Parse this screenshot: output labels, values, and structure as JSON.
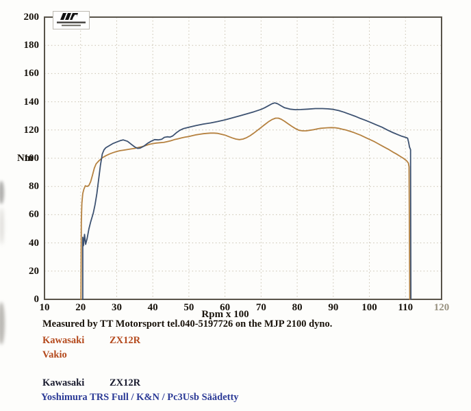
{
  "page": {
    "background": "#fdfdfb"
  },
  "logo": {
    "icon": "mjp-motorsport-logo"
  },
  "footer": {
    "measured_line": "Measured by TT Motorsport tel.040-5197726 on the MJP 2100 dyno.",
    "runs": [
      {
        "make": "Kawasaki",
        "model": "ZX12R",
        "spec": "Vakio",
        "color": "#b4491c"
      },
      {
        "make": "Kawasaki",
        "model": "ZX12R",
        "spec": "Yoshimura TRS Full / K&N / Pc3Usb Säädetty",
        "title_color": "#181a2d",
        "color": "#2b3a96"
      }
    ]
  },
  "chart_data": {
    "type": "line",
    "title": "",
    "xlabel": "Rpm x 100",
    "ylabel": "Nm",
    "xlim": [
      10,
      120
    ],
    "ylim": [
      0,
      200
    ],
    "x_ticks": [
      10,
      20,
      30,
      40,
      50,
      60,
      70,
      80,
      90,
      100,
      110,
      120
    ],
    "y_ticks": [
      0,
      20,
      40,
      60,
      80,
      100,
      120,
      140,
      160,
      180,
      200
    ],
    "x_tick_muted": 120,
    "grid": "dotted",
    "grid_color": "#c8c0ae",
    "frame_color": "#585349",
    "legend_position": "none",
    "series": [
      {
        "id": "vakio",
        "name": "Kawasaki ZX12R Vakio",
        "color": "#b5813f",
        "points": [
          [
            20.1,
            0
          ],
          [
            20.2,
            55
          ],
          [
            20.35,
            68
          ],
          [
            20.6,
            75
          ],
          [
            20.9,
            78
          ],
          [
            21.3,
            80.5
          ],
          [
            21.8,
            80
          ],
          [
            22.3,
            80.8
          ],
          [
            22.8,
            83.5
          ],
          [
            23.3,
            88
          ],
          [
            23.8,
            93
          ],
          [
            24.3,
            96
          ],
          [
            25,
            98
          ],
          [
            26,
            100.3
          ],
          [
            27,
            101.8
          ],
          [
            28,
            103
          ],
          [
            29,
            104
          ],
          [
            30,
            104.8
          ],
          [
            31,
            105.4
          ],
          [
            32,
            105.8
          ],
          [
            33,
            106.2
          ],
          [
            34,
            106.6
          ],
          [
            35,
            107
          ],
          [
            36,
            107.6
          ],
          [
            37,
            108.2
          ],
          [
            38,
            109
          ],
          [
            39,
            109.8
          ],
          [
            40,
            110.4
          ],
          [
            41,
            110.8
          ],
          [
            42,
            111
          ],
          [
            43,
            111.2
          ],
          [
            44,
            111.8
          ],
          [
            45,
            112.4
          ],
          [
            46,
            113.2
          ],
          [
            47,
            113.8
          ],
          [
            48,
            114.4
          ],
          [
            49,
            115
          ],
          [
            50,
            115.4
          ],
          [
            51,
            116
          ],
          [
            52,
            116.6
          ],
          [
            53,
            117
          ],
          [
            54,
            117.4
          ],
          [
            55,
            117.6
          ],
          [
            56,
            117.8
          ],
          [
            57,
            117.8
          ],
          [
            58,
            117.6
          ],
          [
            59,
            117
          ],
          [
            60,
            116.4
          ],
          [
            61,
            115.4
          ],
          [
            62,
            114.4
          ],
          [
            63,
            113.6
          ],
          [
            64,
            113.2
          ],
          [
            65,
            113.6
          ],
          [
            66,
            114.6
          ],
          [
            67,
            116
          ],
          [
            68,
            117.8
          ],
          [
            69,
            119.8
          ],
          [
            70,
            121.8
          ],
          [
            71,
            123.8
          ],
          [
            72,
            125.8
          ],
          [
            73,
            127.4
          ],
          [
            74,
            128.4
          ],
          [
            74.8,
            128.4
          ],
          [
            75.6,
            127.6
          ],
          [
            76.5,
            126.2
          ],
          [
            77.5,
            124.4
          ],
          [
            78.5,
            122.6
          ],
          [
            79.5,
            121
          ],
          [
            80.5,
            119.8
          ],
          [
            81.5,
            119.4
          ],
          [
            82.5,
            119.4
          ],
          [
            83.5,
            119.8
          ],
          [
            84.5,
            120.2
          ],
          [
            85.5,
            120.8
          ],
          [
            86.5,
            121.2
          ],
          [
            87.5,
            121.4
          ],
          [
            88.5,
            121.6
          ],
          [
            89.5,
            121.7
          ],
          [
            90.5,
            121.6
          ],
          [
            91.5,
            121.2
          ],
          [
            92.5,
            120.6
          ],
          [
            93.5,
            120
          ],
          [
            94.5,
            119.2
          ],
          [
            95.5,
            118.4
          ],
          [
            96.5,
            117.4
          ],
          [
            97.5,
            116.4
          ],
          [
            98.5,
            115.2
          ],
          [
            99.5,
            114
          ],
          [
            100.5,
            112.8
          ],
          [
            101.5,
            111.6
          ],
          [
            102.5,
            110.2
          ],
          [
            103.5,
            108.8
          ],
          [
            104.5,
            107.4
          ],
          [
            105.5,
            106
          ],
          [
            106.5,
            104.4
          ],
          [
            107.5,
            103
          ],
          [
            108.5,
            101.4
          ],
          [
            109.5,
            99.8
          ],
          [
            110.3,
            98.2
          ],
          [
            110.8,
            96.6
          ],
          [
            111,
            94
          ],
          [
            111.2,
            0
          ]
        ]
      },
      {
        "id": "yoshimura",
        "name": "Kawasaki ZX12R Yoshimura TRS Full / K&N / Pc3Usb Säädetty",
        "color": "#3c5170",
        "points": [
          [
            20.6,
            0
          ],
          [
            20.6,
            44
          ],
          [
            20.8,
            38
          ],
          [
            21.1,
            46
          ],
          [
            21.4,
            39
          ],
          [
            21.8,
            43
          ],
          [
            22.3,
            50
          ],
          [
            22.8,
            55
          ],
          [
            23.5,
            61
          ],
          [
            24,
            67
          ],
          [
            24.5,
            75
          ],
          [
            25,
            85
          ],
          [
            25.5,
            95
          ],
          [
            26,
            103
          ],
          [
            26.5,
            106
          ],
          [
            27,
            107.5
          ],
          [
            28,
            109
          ],
          [
            29,
            110.5
          ],
          [
            30,
            111.5
          ],
          [
            31,
            112.5
          ],
          [
            31.8,
            113
          ],
          [
            33,
            112
          ],
          [
            34,
            110
          ],
          [
            35,
            108
          ],
          [
            35.8,
            107
          ],
          [
            36.5,
            107.2
          ],
          [
            37.5,
            108.5
          ],
          [
            38.5,
            110.5
          ],
          [
            39.5,
            112
          ],
          [
            40.5,
            113.2
          ],
          [
            41.5,
            113
          ],
          [
            42.5,
            113.5
          ],
          [
            43.2,
            114.8
          ],
          [
            44,
            115.2
          ],
          [
            44.8,
            115
          ],
          [
            45.5,
            115.8
          ],
          [
            46.5,
            118
          ],
          [
            47.5,
            119.8
          ],
          [
            48.5,
            121
          ],
          [
            50,
            122
          ],
          [
            52,
            123.2
          ],
          [
            54,
            124.2
          ],
          [
            56,
            125
          ],
          [
            58,
            126
          ],
          [
            60,
            127.2
          ],
          [
            62,
            128.6
          ],
          [
            64,
            130
          ],
          [
            66,
            131.4
          ],
          [
            68,
            132.9
          ],
          [
            70,
            134.6
          ],
          [
            71,
            135.8
          ],
          [
            72,
            137.2
          ],
          [
            73,
            138.6
          ],
          [
            73.8,
            139.2
          ],
          [
            74.6,
            138.6
          ],
          [
            75.5,
            137.2
          ],
          [
            76.5,
            135.8
          ],
          [
            78,
            134.8
          ],
          [
            79.5,
            134.4
          ],
          [
            81,
            134.5
          ],
          [
            83,
            134.8
          ],
          [
            85,
            135.2
          ],
          [
            87,
            135.2
          ],
          [
            88.5,
            135
          ],
          [
            90,
            134.6
          ],
          [
            91.5,
            133.8
          ],
          [
            93,
            132.6
          ],
          [
            94.5,
            131.2
          ],
          [
            96,
            129.8
          ],
          [
            97.5,
            128.2
          ],
          [
            99,
            126.8
          ],
          [
            100.5,
            125.2
          ],
          [
            102,
            123.6
          ],
          [
            103.5,
            122
          ],
          [
            105,
            120
          ],
          [
            106.5,
            118.2
          ],
          [
            108,
            116.6
          ],
          [
            109,
            115.6
          ],
          [
            110,
            114.8
          ],
          [
            110.6,
            114.2
          ],
          [
            110.9,
            111
          ],
          [
            111.1,
            108
          ],
          [
            111.4,
            106
          ],
          [
            111.5,
            0
          ]
        ]
      }
    ]
  }
}
